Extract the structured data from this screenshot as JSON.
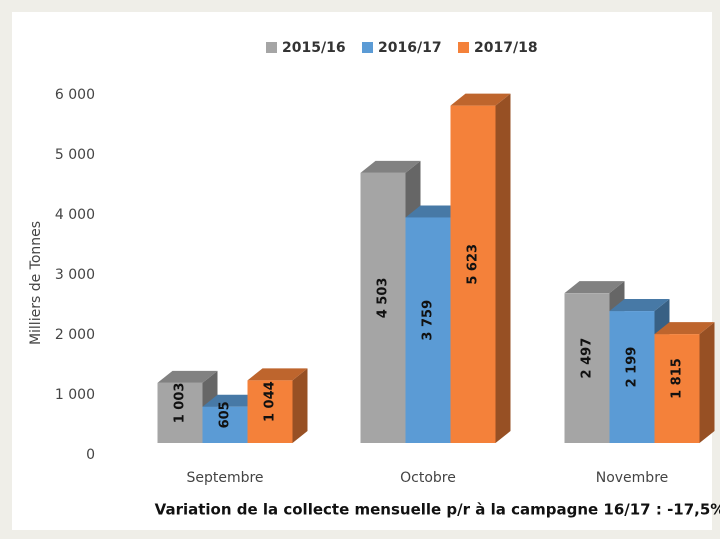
{
  "chart_data": {
    "type": "bar3d",
    "ylabel": "Milliers de Tonnes",
    "annotation": "Variation de la collecte mensuelle p/r à la campagne 16/17 : -17,5%",
    "categories": [
      "Septembre",
      "Octobre",
      "Novembre"
    ],
    "series": [
      {
        "name": "2015/16",
        "color": "#a5a5a5",
        "values": [
          1003,
          4503,
          2497
        ],
        "value_labels": [
          "1 003",
          "4 503",
          "2 497"
        ]
      },
      {
        "name": "2016/17",
        "color": "#5b9bd5",
        "values": [
          605,
          3759,
          2199
        ],
        "value_labels": [
          "605",
          "3 759",
          "2 199"
        ]
      },
      {
        "name": "2017/18",
        "color": "#f4813a",
        "values": [
          1044,
          5623,
          1815
        ],
        "value_labels": [
          "1 044",
          "5 623",
          "1 815"
        ]
      }
    ],
    "ylim": [
      0,
      6000
    ],
    "yticks": [
      0,
      {
        "value": 1000,
        "label": "1 000"
      },
      {
        "value": 2000,
        "label": "2 000"
      },
      {
        "value": 3000,
        "label": "3 000"
      },
      {
        "value": 4000,
        "label": "4 000"
      },
      {
        "value": 5000,
        "label": "5 000"
      },
      {
        "value": 6000,
        "label": "6 000"
      }
    ],
    "grid": false,
    "legend": "top"
  }
}
